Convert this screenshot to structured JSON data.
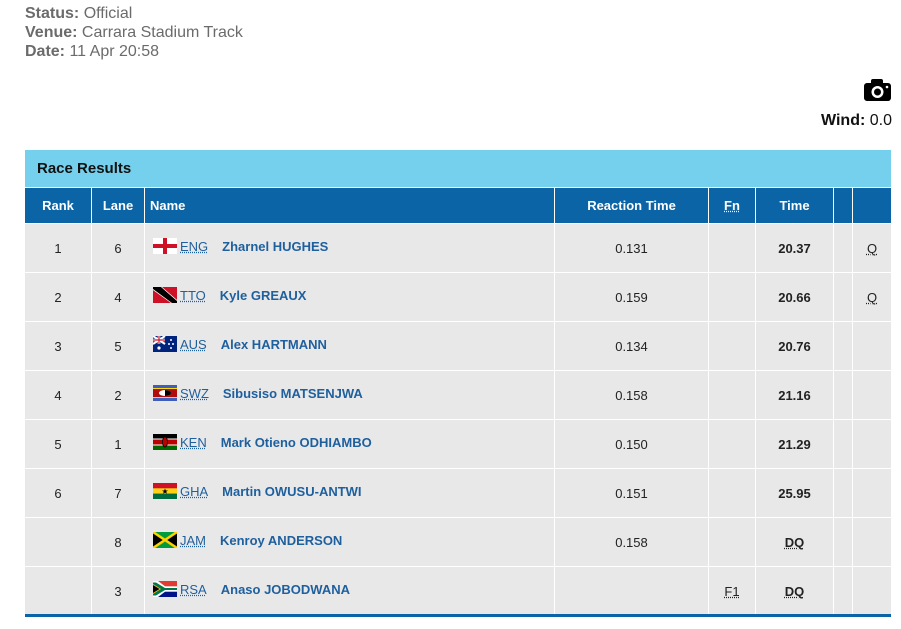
{
  "header": {
    "status_label": "Status:",
    "status": "Official",
    "venue_label": "Venue:",
    "venue": "Carrara Stadium Track",
    "date_label": "Date:",
    "date": "11 Apr 20:58"
  },
  "wind": {
    "label": "Wind:",
    "value": "0.0"
  },
  "table": {
    "title": "Race Results",
    "columns": [
      "Rank",
      "Lane",
      "Name",
      "Reaction Time",
      "Fn",
      "Time"
    ],
    "rows": [
      {
        "rank": 1,
        "lane": 6,
        "country": "ENG",
        "name": "Zharnel HUGHES",
        "reaction": "0.131",
        "time": "20.37",
        "qualifier": "Q"
      },
      {
        "rank": 2,
        "lane": 4,
        "country": "TTO",
        "name": "Kyle GREAUX",
        "reaction": "0.159",
        "time": "20.66",
        "qualifier": "Q"
      },
      {
        "rank": 3,
        "lane": 5,
        "country": "AUS",
        "name": "Alex HARTMANN",
        "reaction": "0.134",
        "time": "20.76"
      },
      {
        "rank": 4,
        "lane": 2,
        "country": "SWZ",
        "name": "Sibusiso MATSENJWA",
        "reaction": "0.158",
        "time": "21.16"
      },
      {
        "rank": 5,
        "lane": 1,
        "country": "KEN",
        "name": "Mark Otieno ODHIAMBO",
        "reaction": "0.150",
        "time": "21.29"
      },
      {
        "rank": 6,
        "lane": 7,
        "country": "GHA",
        "name": "Martin OWUSU-ANTWI",
        "reaction": "0.151",
        "time": "25.95"
      },
      {
        "lane": 8,
        "country": "JAM",
        "name": "Kenroy ANDERSON",
        "reaction": "0.158",
        "time": "DQ"
      },
      {
        "lane": 3,
        "country": "RSA",
        "name": "Anaso JOBODWANA",
        "fn": "F1",
        "time": "DQ"
      }
    ]
  }
}
